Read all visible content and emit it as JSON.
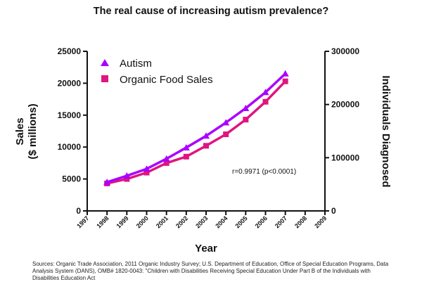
{
  "chart_data": {
    "type": "line",
    "title": "The real cause of increasing autism prevalence?",
    "xlabel": "Year",
    "ylabel_left_line1": "Sales",
    "ylabel_left_line2": "($ millions)",
    "ylabel_right": "Individuals Diagnosed",
    "x_ticks": [
      "1997",
      "1998",
      "1999",
      "2000",
      "2001",
      "2002",
      "2003",
      "2004",
      "2005",
      "2006",
      "2007",
      "2008",
      "2009"
    ],
    "xlim": [
      1997,
      2009
    ],
    "y_left_ticks": [
      0,
      5000,
      10000,
      15000,
      20000,
      25000
    ],
    "y_left_lim": [
      0,
      25000
    ],
    "y_right_ticks": [
      0,
      100000,
      200000,
      300000
    ],
    "y_right_lim": [
      0,
      300000
    ],
    "legend_position": "top-left",
    "series": [
      {
        "name": "Autism",
        "axis": "right",
        "marker": "triangle",
        "color": "#aa00ff",
        "x": [
          1998,
          1999,
          2000,
          2001,
          2002,
          2003,
          2004,
          2005,
          2006,
          2007
        ],
        "values": [
          54000,
          66000,
          79000,
          98000,
          119000,
          141000,
          166000,
          193000,
          223000,
          258000
        ]
      },
      {
        "name": "Organic Food Sales",
        "axis": "left",
        "marker": "square",
        "color": "#e0157f",
        "x": [
          1998,
          1999,
          2000,
          2001,
          2002,
          2003,
          2004,
          2005,
          2006,
          2007
        ],
        "values": [
          4300,
          5000,
          6000,
          7500,
          8500,
          10200,
          12000,
          14300,
          17100,
          20300
        ]
      }
    ],
    "annotation": "r=0.9971 (p<0.0001)"
  },
  "sources": "Sources: Organic Trade Association, 2011 Organic Industry Survey; U.S. Department of Education, Office of Special Education Programs, Data Analysis System (DANS), OMB# 1820-0043: \"Children with Disabilities Receiving Special Education Under Part B of the Individuals with Disabilities Education Act"
}
